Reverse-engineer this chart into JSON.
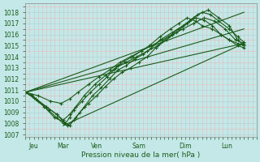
{
  "bg_color": "#c4e8e8",
  "grid_minor_color": "#e8b8b8",
  "grid_major_color": "#b8d8d8",
  "line_color": "#1a5c1a",
  "marker_color": "#1a5c1a",
  "xlabel": "Pression niveau de la mer( hPa )",
  "xlabel_color": "#1a5c1a",
  "tick_color": "#1a5c1a",
  "ylim": [
    1006.8,
    1018.8
  ],
  "yticks": [
    1007,
    1008,
    1009,
    1010,
    1011,
    1012,
    1013,
    1014,
    1015,
    1016,
    1017,
    1018
  ],
  "xlim": [
    0,
    5.5
  ],
  "xtick_labels": [
    "Jeu",
    "Mar",
    "Ven",
    "Sam",
    "Dim",
    "Lun"
  ],
  "xtick_positions": [
    0.2,
    0.9,
    1.7,
    2.7,
    3.8,
    4.8
  ],
  "series": [
    {
      "x": [
        0.0,
        0.15,
        0.25,
        0.5,
        0.75,
        0.9,
        0.95,
        1.05,
        1.15,
        1.35,
        1.55,
        1.75,
        1.95,
        2.1,
        2.2,
        2.35,
        2.55,
        2.75,
        2.95,
        3.2,
        3.45,
        3.65,
        3.85,
        4.05,
        4.2,
        4.45,
        4.65,
        4.85,
        5.05,
        5.2
      ],
      "y": [
        1010.8,
        1010.6,
        1010.2,
        1009.5,
        1008.8,
        1008.2,
        1008.0,
        1008.5,
        1009.2,
        1010.0,
        1010.8,
        1011.5,
        1012.2,
        1012.8,
        1013.2,
        1013.6,
        1014.0,
        1014.5,
        1015.0,
        1015.8,
        1016.5,
        1017.0,
        1017.5,
        1017.2,
        1016.8,
        1016.5,
        1016.0,
        1015.5,
        1015.2,
        1015.0
      ]
    },
    {
      "x": [
        0.0,
        0.15,
        0.3,
        0.55,
        0.75,
        0.9,
        1.0,
        1.15,
        1.3,
        1.5,
        1.7,
        1.9,
        2.1,
        2.3,
        2.5,
        2.7,
        2.9,
        3.1,
        3.35,
        3.6,
        3.85,
        4.05,
        4.25,
        4.45,
        4.65,
        4.85,
        5.05,
        5.2
      ],
      "y": [
        1010.8,
        1010.5,
        1010.0,
        1009.2,
        1008.5,
        1008.0,
        1007.8,
        1008.3,
        1009.0,
        1009.8,
        1010.5,
        1011.3,
        1012.0,
        1012.6,
        1013.0,
        1013.5,
        1014.0,
        1014.8,
        1015.5,
        1016.2,
        1017.0,
        1017.5,
        1017.3,
        1016.8,
        1016.0,
        1015.5,
        1015.0,
        1014.8
      ]
    },
    {
      "x": [
        0.0,
        0.2,
        0.45,
        0.7,
        0.9,
        1.05,
        1.2,
        1.4,
        1.6,
        1.8,
        2.0,
        2.2,
        2.4,
        2.6,
        2.8,
        3.0,
        3.2,
        3.5,
        3.75,
        4.0,
        4.2,
        4.4,
        4.6,
        4.85,
        5.05,
        5.2
      ],
      "y": [
        1010.8,
        1010.3,
        1009.5,
        1008.5,
        1008.2,
        1007.8,
        1008.5,
        1009.5,
        1010.5,
        1011.2,
        1012.0,
        1012.8,
        1013.2,
        1013.8,
        1014.2,
        1014.8,
        1015.5,
        1016.2,
        1016.8,
        1017.5,
        1018.0,
        1017.8,
        1017.2,
        1016.5,
        1015.8,
        1015.3
      ]
    },
    {
      "x": [
        0.0,
        0.25,
        0.5,
        0.75,
        0.9,
        1.05,
        1.2,
        1.4,
        1.65,
        1.9,
        2.15,
        2.4,
        2.65,
        2.9,
        3.15,
        3.4,
        3.65,
        3.9,
        4.1,
        4.35,
        4.6,
        4.85,
        5.05,
        5.2
      ],
      "y": [
        1010.8,
        1010.2,
        1009.5,
        1008.8,
        1008.3,
        1008.8,
        1009.5,
        1010.5,
        1011.5,
        1012.3,
        1013.0,
        1013.5,
        1014.0,
        1014.5,
        1015.0,
        1015.8,
        1016.5,
        1017.2,
        1017.8,
        1018.2,
        1017.5,
        1016.8,
        1015.5,
        1015.0
      ]
    },
    {
      "x": [
        0.0,
        0.3,
        0.6,
        0.85,
        1.05,
        1.25,
        1.5,
        1.75,
        2.0,
        2.25,
        2.5,
        2.75,
        3.0,
        3.25,
        3.5,
        3.75,
        4.0,
        4.25,
        4.5,
        4.75,
        5.0,
        5.2
      ],
      "y": [
        1010.8,
        1010.5,
        1010.0,
        1009.8,
        1010.2,
        1010.8,
        1011.5,
        1012.2,
        1012.8,
        1013.5,
        1014.0,
        1014.5,
        1015.0,
        1015.5,
        1016.0,
        1016.5,
        1017.0,
        1017.5,
        1017.2,
        1016.5,
        1015.5,
        1015.2
      ]
    }
  ],
  "envelope": [
    {
      "x": [
        0.0,
        5.2
      ],
      "y": [
        1010.8,
        1018.0
      ]
    },
    {
      "x": [
        0.0,
        5.2
      ],
      "y": [
        1010.8,
        1016.5
      ]
    },
    {
      "x": [
        0.0,
        5.2
      ],
      "y": [
        1010.8,
        1015.2
      ]
    },
    {
      "x": [
        0.9,
        5.2
      ],
      "y": [
        1007.8,
        1015.2
      ]
    }
  ]
}
